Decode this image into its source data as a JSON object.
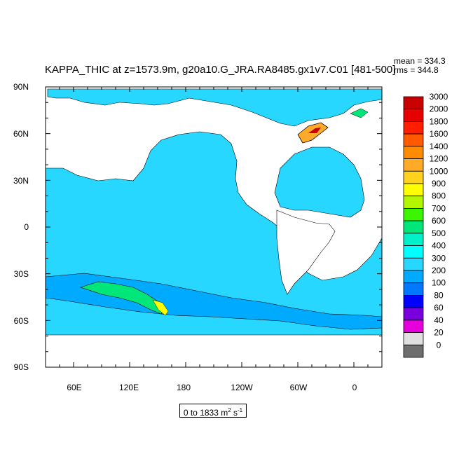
{
  "title": "KAPPA_THIC at z=1573.9m, g20a10.G_JRA.RA8485.gx1v7.C01 [481-500]",
  "stats": {
    "mean": "mean = 334.3",
    "rms": "rms = 344.8"
  },
  "lat_labels": [
    "90N",
    "60N",
    "30N",
    "0",
    "30S",
    "60S",
    "90S"
  ],
  "lon_labels": [
    "60E",
    "120E",
    "180",
    "120W",
    "60W",
    "0"
  ],
  "range": {
    "prefix": "0 to 1833 m",
    "sup1": "2",
    "mid": " s",
    "sup2": "-1"
  },
  "colorbar": {
    "labels": [
      "3000",
      "2000",
      "1800",
      "1600",
      "1400",
      "1200",
      "1000",
      "900",
      "800",
      "700",
      "600",
      "500",
      "400",
      "300",
      "200",
      "100",
      "80",
      "60",
      "40",
      "20",
      "0"
    ],
    "colors": [
      "#c80000",
      "#e60000",
      "#ff1e00",
      "#ff5a00",
      "#ff8c00",
      "#ffaa28",
      "#ffd21e",
      "#ffff00",
      "#b4f500",
      "#3cf500",
      "#00e678",
      "#00f0c8",
      "#00ffff",
      "#28d7ff",
      "#00aaff",
      "#0078ff",
      "#0000ff",
      "#7800dc",
      "#e600dc",
      "#e0e0e0",
      "#6e6e6e"
    ]
  },
  "colors": {
    "ocean_base": "#28d7ff",
    "ocean_low": "#00aaff",
    "ocean_mid": "#00f0c8",
    "land": "#ffffff"
  }
}
